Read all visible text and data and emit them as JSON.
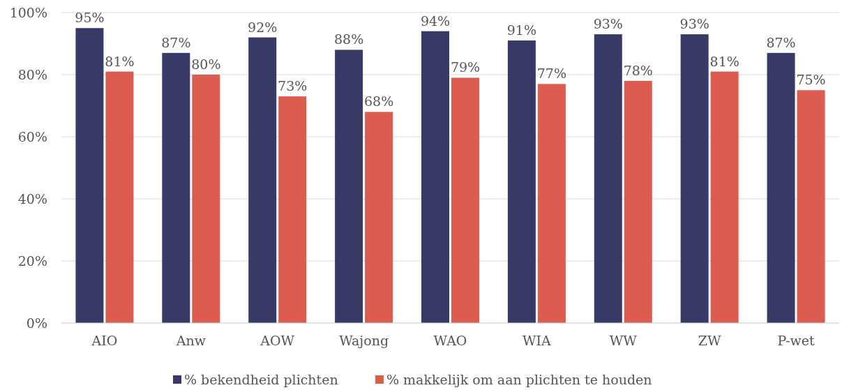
{
  "chart_data": {
    "type": "bar",
    "categories": [
      "AIO",
      "Anw",
      "AOW",
      "Wajong",
      "WAO",
      "WIA",
      "WW",
      "ZW",
      "P-wet"
    ],
    "series": [
      {
        "name": "% bekendheid plichten",
        "color": "#383a66",
        "values": [
          95,
          87,
          92,
          88,
          94,
          91,
          93,
          93,
          87
        ],
        "value_labels": [
          "95%",
          "87%",
          "92%",
          "88%",
          "94%",
          "91%",
          "93%",
          "93%",
          "87%"
        ]
      },
      {
        "name": "% makkelijk om aan plichten te houden",
        "color": "#dc5c50",
        "values": [
          81,
          80,
          73,
          68,
          79,
          77,
          78,
          81,
          75
        ],
        "value_labels": [
          "81%",
          "80%",
          "73%",
          "68%",
          "79%",
          "77%",
          "78%",
          "81%",
          "75%"
        ]
      }
    ],
    "ylim": [
      0,
      100
    ],
    "yticks": [
      {
        "value": 0,
        "label": "0%"
      },
      {
        "value": 20,
        "label": "20%"
      },
      {
        "value": 40,
        "label": "40%"
      },
      {
        "value": 60,
        "label": "60%"
      },
      {
        "value": 80,
        "label": "80%"
      },
      {
        "value": 100,
        "label": "100%"
      }
    ],
    "grid": "y",
    "legend": "bottom"
  }
}
